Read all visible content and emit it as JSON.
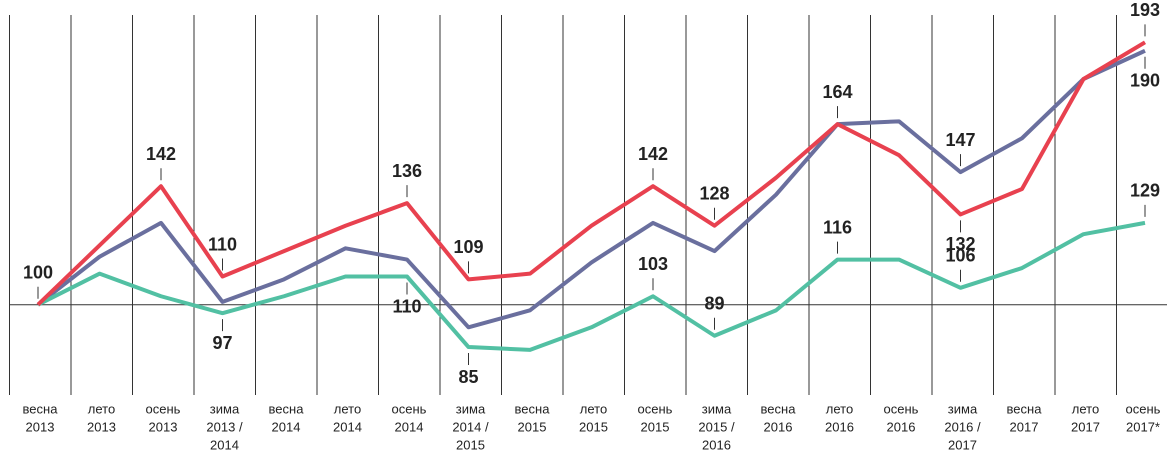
{
  "chart_data": {
    "type": "line",
    "categories": [
      [
        "весна",
        "2013"
      ],
      [
        "лето",
        "2013"
      ],
      [
        "осень",
        "2013"
      ],
      [
        "зима",
        "2013 /",
        "2014"
      ],
      [
        "весна",
        "2014"
      ],
      [
        "лето",
        "2014"
      ],
      [
        "осень",
        "2014"
      ],
      [
        "зима",
        "2014 /",
        "2015"
      ],
      [
        "весна",
        "2015"
      ],
      [
        "лето",
        "2015"
      ],
      [
        "осень",
        "2015"
      ],
      [
        "зима",
        "2015 /",
        "2016"
      ],
      [
        "весна",
        "2016"
      ],
      [
        "лето",
        "2016"
      ],
      [
        "осень",
        "2016"
      ],
      [
        "зима",
        "2016 /",
        "2017"
      ],
      [
        "весна",
        "2017"
      ],
      [
        "лето",
        "2017"
      ],
      [
        "осень",
        "2017*"
      ]
    ],
    "series": [
      {
        "color": "#e8414f",
        "values": [
          100,
          121,
          142,
          110,
          119,
          128,
          136,
          109,
          111,
          128,
          142,
          128,
          145,
          164,
          153,
          132,
          141,
          180,
          193
        ],
        "value_labels": [
          null,
          null,
          "142",
          "110",
          null,
          null,
          "136",
          "109",
          null,
          null,
          "142",
          "128",
          null,
          "164",
          null,
          "132",
          null,
          null,
          "193"
        ]
      },
      {
        "color": "#6a6f9e",
        "values": [
          100,
          117,
          129,
          101,
          109,
          120,
          116,
          92,
          98,
          115,
          129,
          119,
          139,
          164,
          165,
          147,
          159,
          180,
          190
        ],
        "value_labels": [
          null,
          null,
          null,
          null,
          null,
          null,
          null,
          null,
          null,
          null,
          null,
          null,
          null,
          null,
          null,
          "147",
          null,
          null,
          "190"
        ]
      },
      {
        "color": "#52c0a3",
        "values": [
          100,
          111,
          103,
          97,
          103,
          110,
          110,
          85,
          84,
          92,
          103,
          89,
          98,
          116,
          116,
          106,
          113,
          125,
          129
        ],
        "value_labels": [
          "100",
          null,
          null,
          "97",
          null,
          null,
          "110",
          "85",
          null,
          null,
          "103",
          "89",
          null,
          "116",
          null,
          "106",
          null,
          null,
          "129"
        ]
      }
    ],
    "ylim": [
      68,
      208
    ],
    "yticks": [
      100
    ]
  }
}
